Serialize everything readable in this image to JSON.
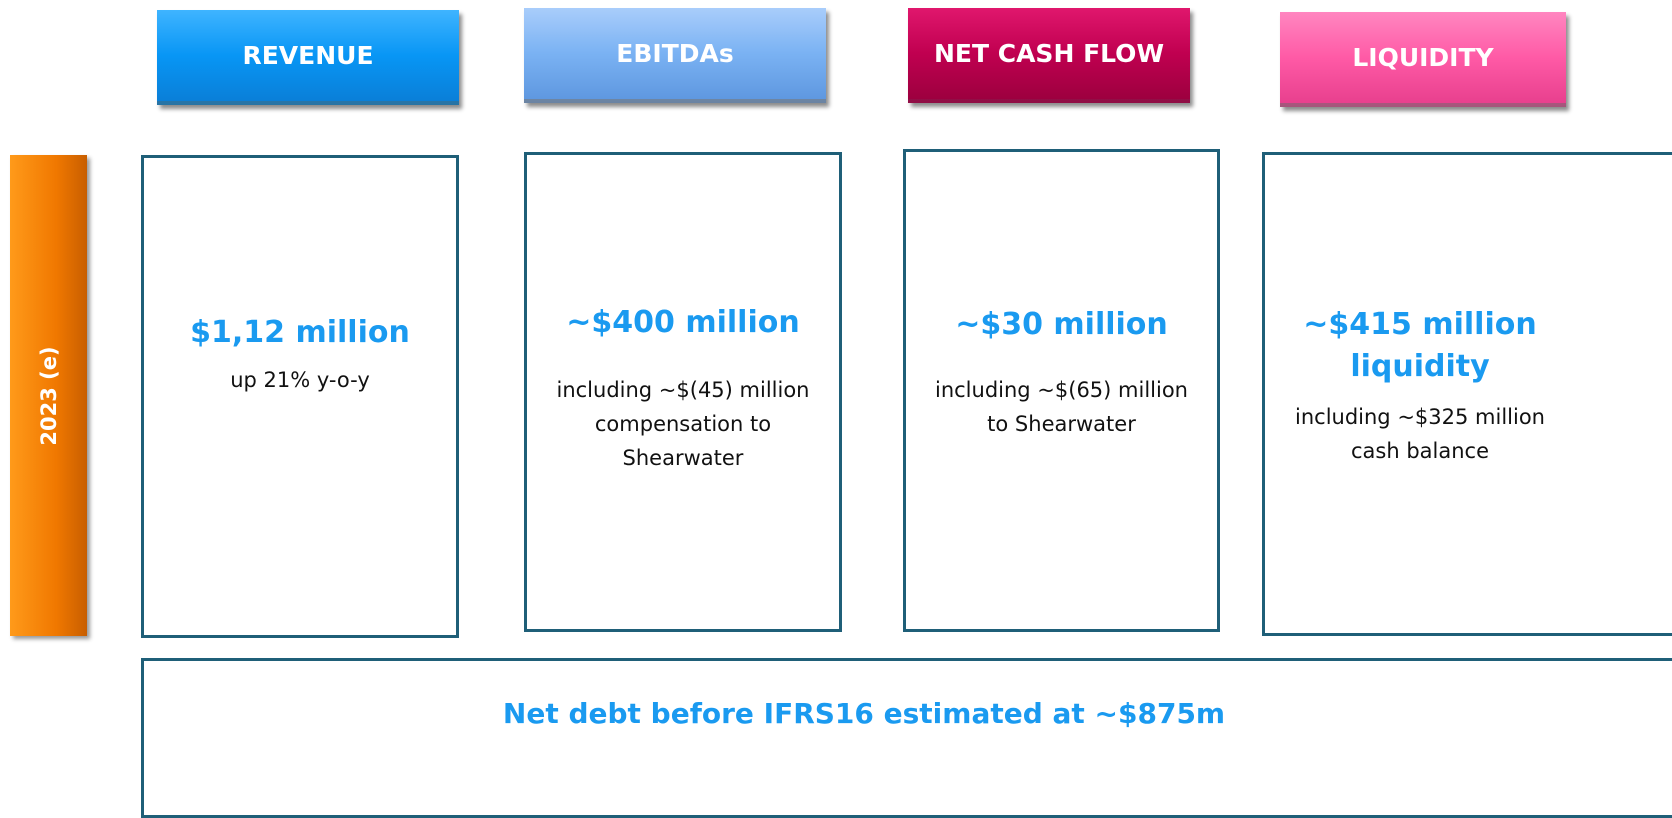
{
  "period": "2023 (e)",
  "columns": [
    {
      "header": "REVENUE",
      "value_lines": [
        "$1,12 million"
      ],
      "description_lines": [
        "up 21% y-o-y"
      ]
    },
    {
      "header": "EBITDAs",
      "value_lines": [
        "~$400 million"
      ],
      "description_lines": [
        "including ~$(45) million",
        "compensation to",
        "Shearwater"
      ]
    },
    {
      "header": "NET CASH FLOW",
      "value_lines": [
        "~$30 million"
      ],
      "description_lines": [
        "including ~$(65) million",
        "to Shearwater"
      ]
    },
    {
      "header": "LIQUIDITY",
      "value_lines": [
        "~$415 million",
        "liquidity"
      ],
      "description_lines": [
        "including ~$325 million",
        "cash balance"
      ]
    }
  ],
  "footer": "Net debt before IFRS16 estimated at ~$875m"
}
